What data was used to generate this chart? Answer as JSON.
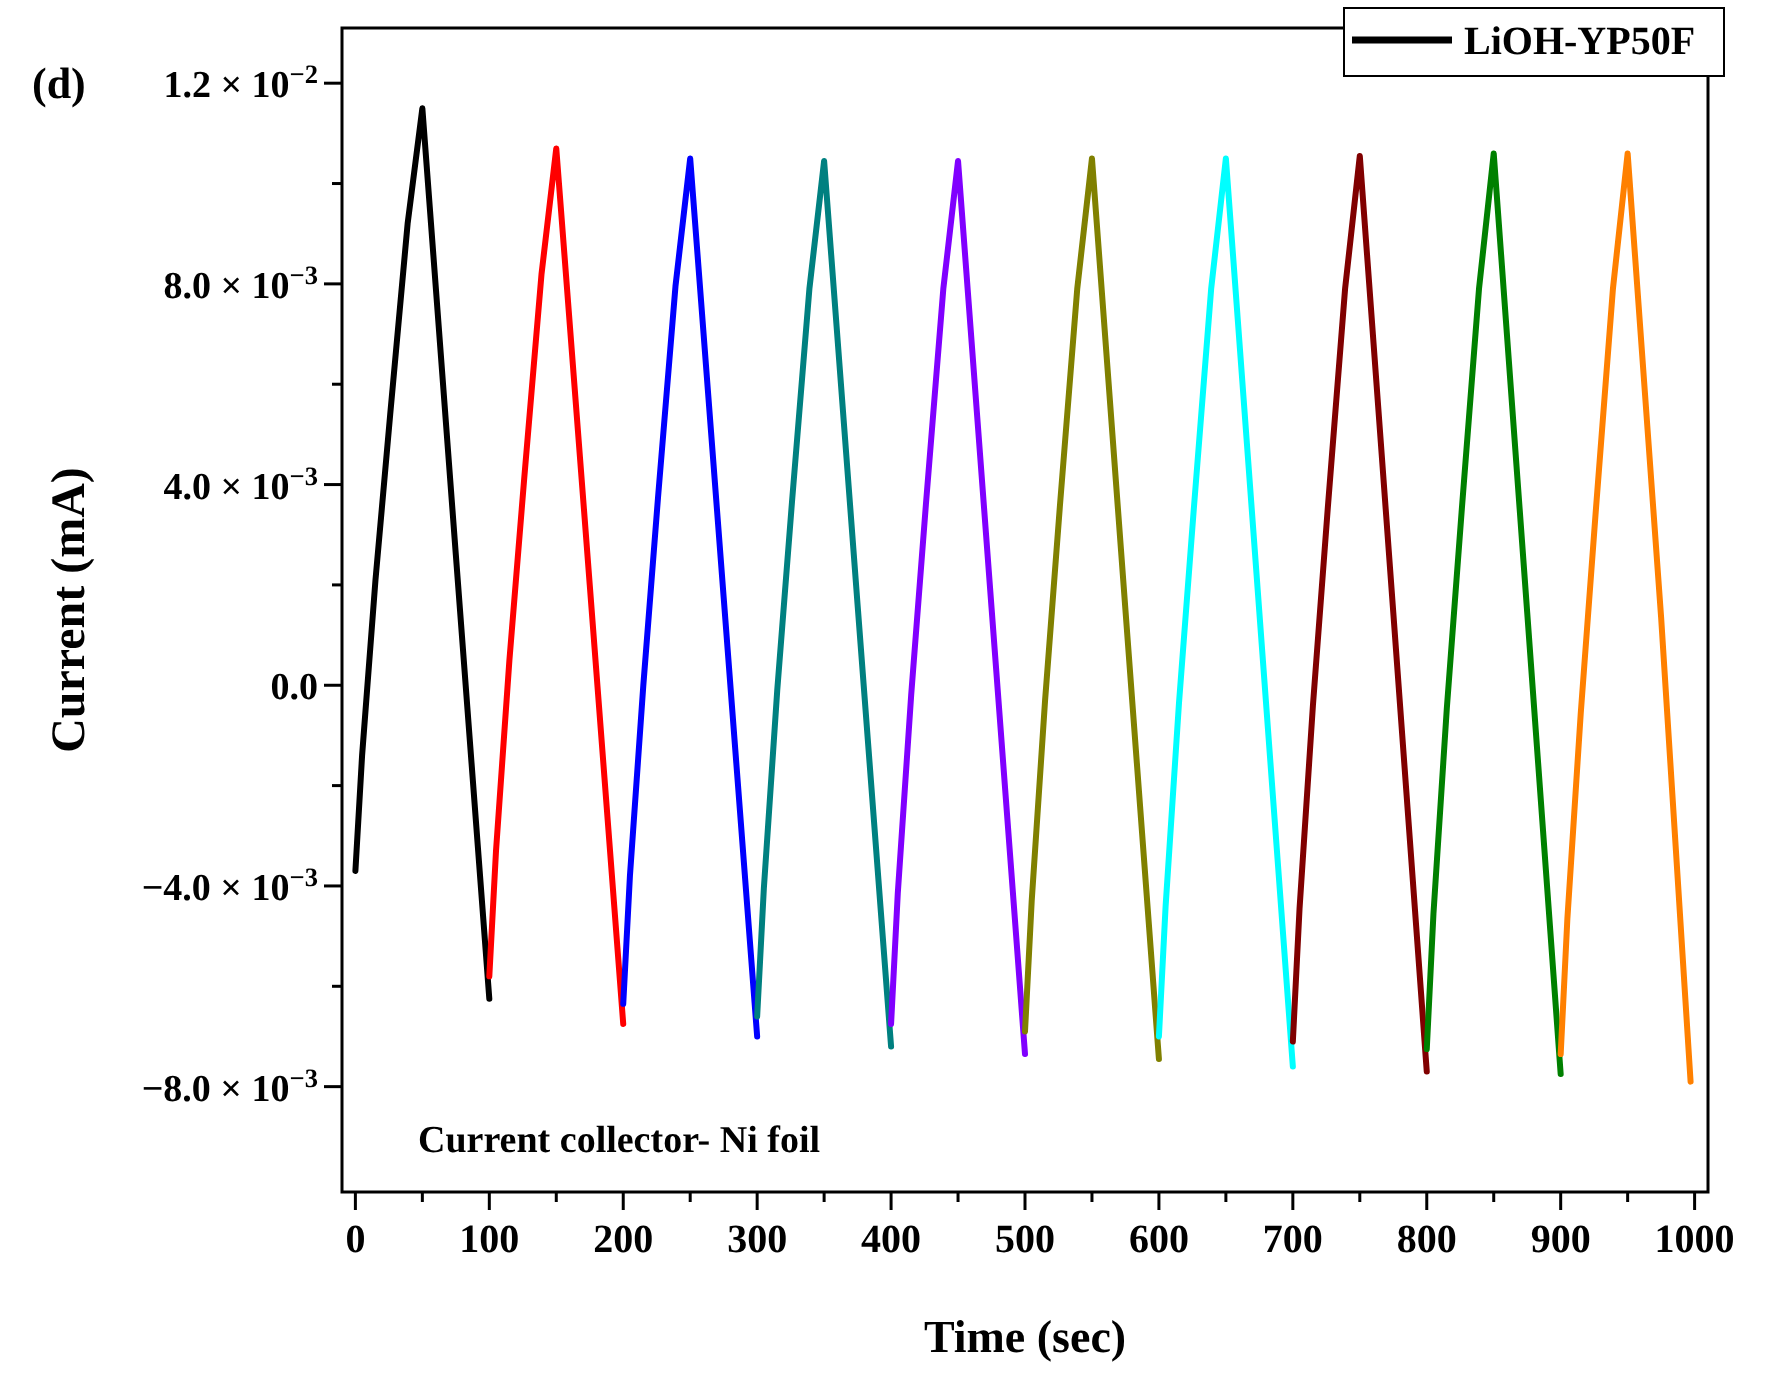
{
  "chart_data": {
    "type": "line",
    "xlabel": "Time (sec)",
    "ylabel": "Current (mA)",
    "annotations": [
      "(d)",
      "Current collector- Ni foil"
    ],
    "xlim": [
      -10,
      1010
    ],
    "xticks": [
      0,
      {
        "value": 50,
        "label": null
      },
      100,
      {
        "value": 150,
        "label": null
      },
      200,
      {
        "value": 250,
        "label": null
      },
      300,
      {
        "value": 350,
        "label": null
      },
      400,
      {
        "value": 450,
        "label": null
      },
      500,
      {
        "value": 550,
        "label": null
      },
      600,
      {
        "value": 650,
        "label": null
      },
      700,
      {
        "value": 750,
        "label": null
      },
      800,
      {
        "value": 850,
        "label": null
      },
      900,
      {
        "value": 950,
        "label": null
      },
      1000
    ],
    "ylim": [
      -0.0101,
      0.0131
    ],
    "yticks": [
      {
        "value": -0.008,
        "label": "−8.0 × 10$^{−3}$"
      },
      {
        "value": -0.006,
        "label": null
      },
      {
        "value": -0.004,
        "label": "−4.0 × 10$^{−3}$"
      },
      {
        "value": -0.002,
        "label": null
      },
      {
        "value": 0,
        "label": "0.0"
      },
      {
        "value": 0.002,
        "label": null
      },
      {
        "value": 0.004,
        "label": "4.0 × 10$^{−3}$"
      },
      {
        "value": 0.006,
        "label": null
      },
      {
        "value": 0.008,
        "label": "8.0 × 10$^{−3}$"
      },
      {
        "value": 0.01,
        "label": null
      },
      {
        "value": 0.012,
        "label": "1.2 × 10$^{−2}$"
      }
    ],
    "legend": "top right",
    "marker": "none",
    "line_style": "solid",
    "grid": false,
    "series": [
      {
        "name": "LiOH-YP50F",
        "color": "#000000",
        "x": [
          0,
          5,
          15,
          26,
          39,
          50,
          75,
          100
        ],
        "values": [
          -0.0037,
          -0.0014,
          0.0021,
          0.0054,
          0.0092,
          0.0115,
          0.0026,
          -0.00625
        ]
      },
      {
        "color": "#ff0000",
        "x": [
          100,
          105,
          115,
          126,
          139,
          150,
          175,
          200
        ],
        "values": [
          -0.0058,
          -0.0033,
          0.0005,
          0.0041,
          0.0082,
          0.0107,
          0.002,
          -0.00675
        ]
      },
      {
        "color": "#0000ff",
        "x": [
          200,
          205,
          215,
          226,
          239,
          250,
          275,
          300
        ],
        "values": [
          -0.00635,
          -0.0038,
          0,
          0.00375,
          0.00795,
          0.0105,
          0.00175,
          -0.007
        ]
      },
      {
        "color": "#008080",
        "x": [
          300,
          305,
          315,
          326,
          339,
          350,
          375,
          400
        ],
        "values": [
          -0.0066,
          -0.00405,
          -0.0001,
          0.00365,
          0.0079,
          0.01045,
          0.0016,
          -0.0072
        ]
      },
      {
        "color": "#8000ff",
        "x": [
          400,
          405,
          415,
          426,
          439,
          450,
          475,
          500
        ],
        "values": [
          -0.00675,
          -0.00415,
          -0.0002,
          0.0036,
          0.0079,
          0.01045,
          0.00155,
          -0.00735
        ]
      },
      {
        "color": "#808000",
        "x": [
          500,
          505,
          515,
          526,
          539,
          550,
          575,
          600
        ],
        "values": [
          -0.0069,
          -0.0043,
          -0.0003,
          0.00355,
          0.0079,
          0.0105,
          0.0015,
          -0.00745
        ]
      },
      {
        "color": "#00ffff",
        "x": [
          600,
          605,
          615,
          626,
          639,
          650,
          675,
          700
        ],
        "values": [
          -0.007,
          -0.0044,
          -0.00035,
          0.0035,
          0.0079,
          0.0105,
          0.00145,
          -0.0076
        ]
      },
      {
        "color": "#800000",
        "x": [
          700,
          705,
          715,
          726,
          739,
          750,
          775,
          800
        ],
        "values": [
          -0.0071,
          -0.00445,
          -0.0004,
          0.0035,
          0.0079,
          0.01055,
          0.00145,
          -0.0077
        ]
      },
      {
        "color": "#008000",
        "x": [
          800,
          805,
          815,
          826,
          839,
          850,
          875,
          900
        ],
        "values": [
          -0.00725,
          -0.00455,
          -0.00045,
          0.00345,
          0.0079,
          0.0106,
          0.00145,
          -0.00775
        ]
      },
      {
        "color": "#ff8000",
        "x": [
          900,
          905,
          915,
          926,
          939,
          950,
          975,
          997
        ],
        "values": [
          -0.00735,
          -0.00465,
          -0.00055,
          0.0034,
          0.0079,
          0.0106,
          0.00135,
          -0.0079
        ]
      }
    ]
  }
}
